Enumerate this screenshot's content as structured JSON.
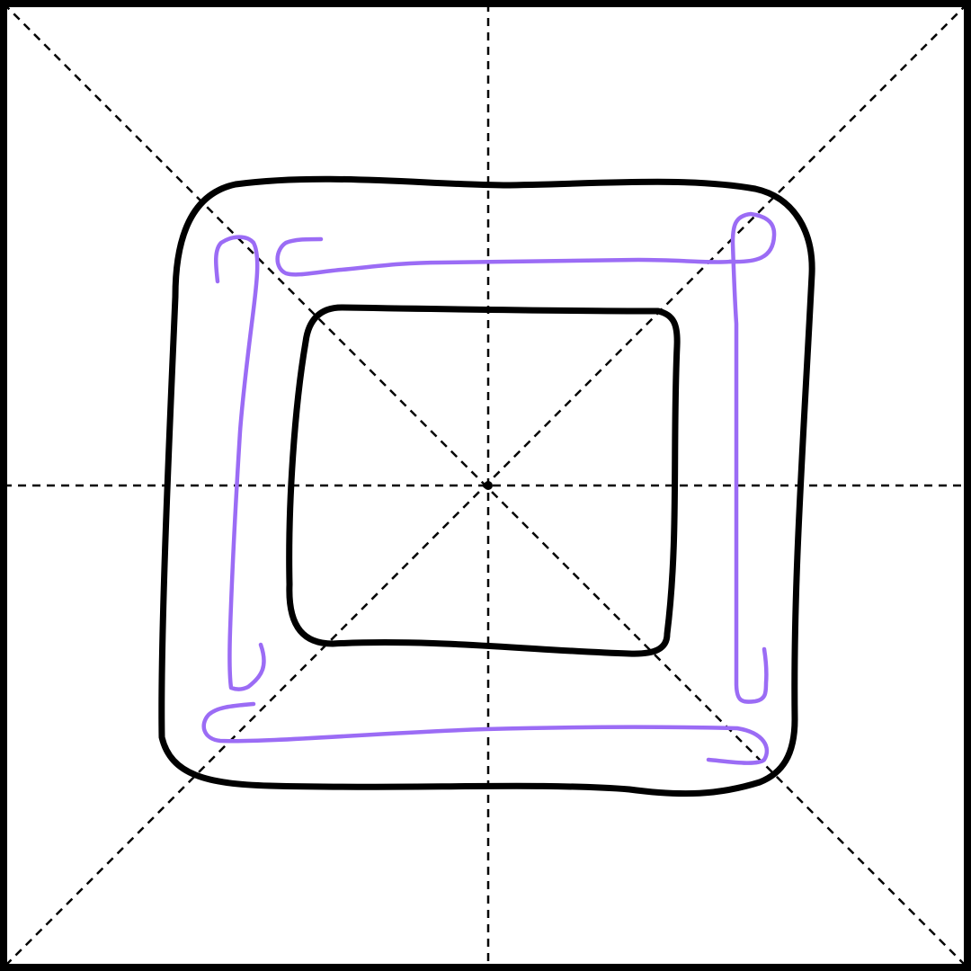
{
  "diagram": {
    "type": "stroke-order-guide",
    "grid": {
      "style": "dashed",
      "guides": [
        "horizontal-center",
        "vertical-center",
        "diagonal",
        "anti-diagonal"
      ]
    },
    "colors": {
      "background": "#ffffff",
      "border": "#000000",
      "guide": "#000000",
      "outline": "#000000",
      "stroke": "#9b6cf5"
    },
    "strokes": [
      {
        "name": "left-vertical-stroke"
      },
      {
        "name": "top-horizontal-stroke"
      },
      {
        "name": "right-vertical-stroke"
      },
      {
        "name": "bottom-horizontal-stroke"
      }
    ]
  }
}
